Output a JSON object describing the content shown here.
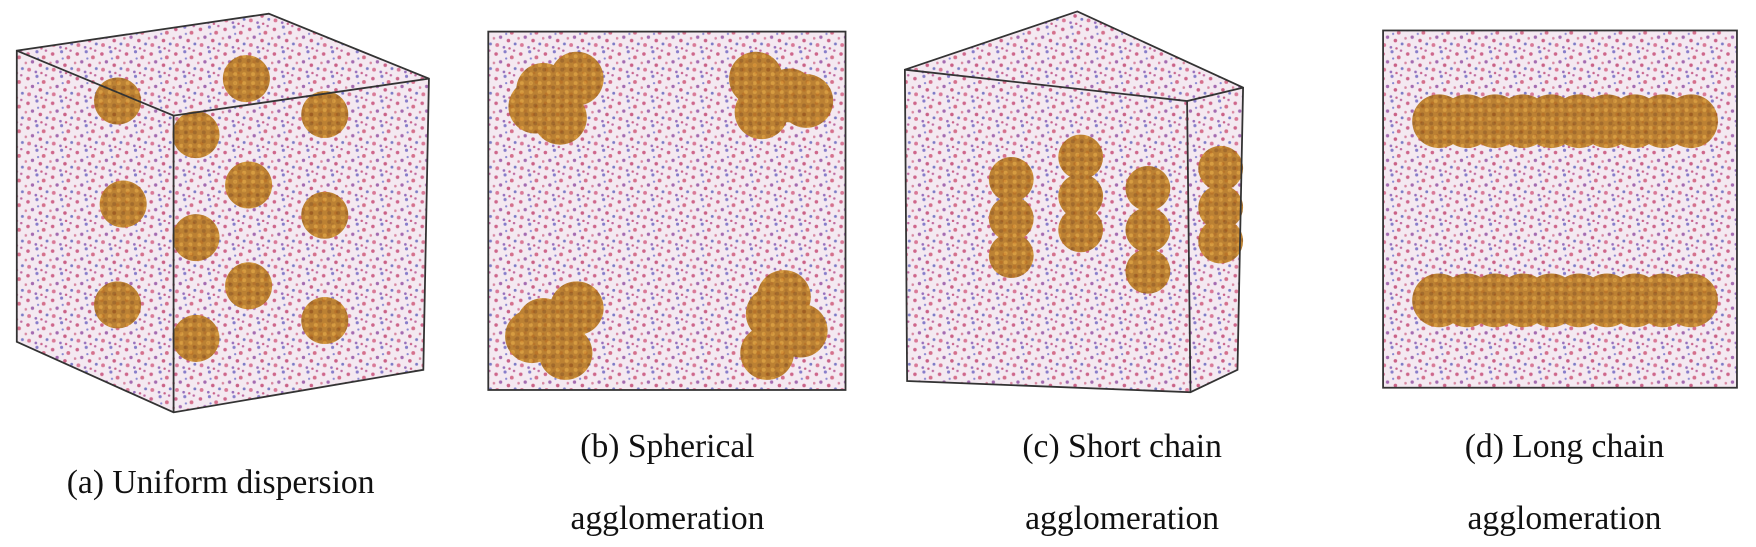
{
  "panels": [
    {
      "caption": [
        "(a) Uniform dispersion"
      ]
    },
    {
      "caption": [
        "(b) Spherical",
        "agglomeration"
      ]
    },
    {
      "caption": [
        "(c) Short chain",
        "agglomeration"
      ]
    },
    {
      "caption": [
        "(d) Long chain",
        "agglomeration"
      ]
    }
  ]
}
